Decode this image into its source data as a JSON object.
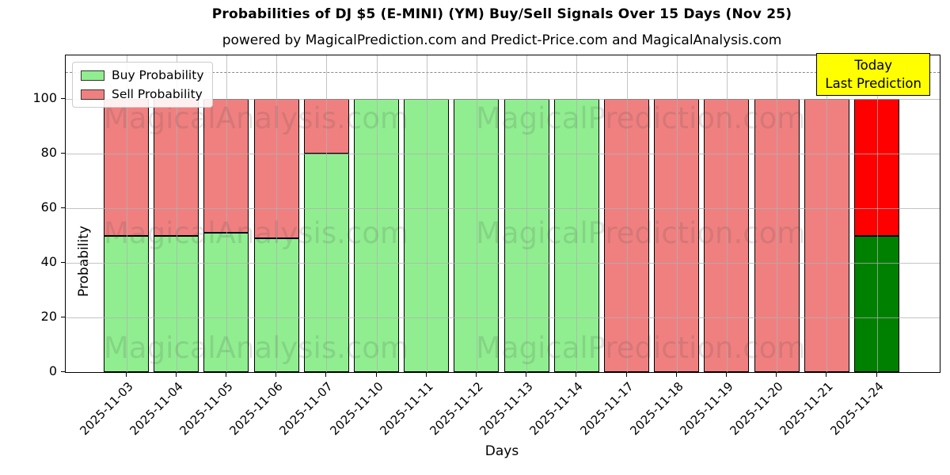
{
  "chart_data": {
    "type": "bar",
    "stacked": true,
    "title": "Probabilities of DJ $5 (E-MINI) (YM) Buy/Sell Signals Over 15 Days (Nov 25)",
    "subtitle": "powered by MagicalPrediction.com and Predict-Price.com and MagicalAnalysis.com",
    "xlabel": "Days",
    "ylabel": "Probability",
    "categories": [
      "2025-11-03",
      "2025-11-04",
      "2025-11-05",
      "2025-11-06",
      "2025-11-07",
      "2025-11-10",
      "2025-11-11",
      "2025-11-12",
      "2025-11-13",
      "2025-11-14",
      "2025-11-17",
      "2025-11-18",
      "2025-11-19",
      "2025-11-20",
      "2025-11-21",
      "2025-11-24"
    ],
    "series": [
      {
        "name": "Buy Probability",
        "color": "#90EE90",
        "values": [
          50,
          50,
          51,
          49,
          80,
          100,
          100,
          100,
          100,
          100,
          0,
          0,
          0,
          0,
          0,
          50
        ]
      },
      {
        "name": "Sell Probability",
        "color": "#F08080",
        "values": [
          50,
          50,
          49,
          51,
          20,
          0,
          0,
          0,
          0,
          0,
          100,
          100,
          100,
          100,
          100,
          50
        ]
      }
    ],
    "today_bar": {
      "index": 15,
      "buy_color": "#008000",
      "sell_color": "#FF0000"
    },
    "yticks": [
      0,
      20,
      40,
      60,
      80,
      100
    ],
    "ylim": [
      0,
      116
    ],
    "dashed_line_y": 110,
    "grid": "on",
    "legend_position": "upper-left",
    "annotation": {
      "lines": [
        "Today",
        "Last Prediction"
      ],
      "bg_color": "#FFFF00"
    },
    "watermarks": {
      "left": "MagicalAnalysis.com",
      "right": "MagicalPrediction.com"
    },
    "colors": {
      "grid": "#b0b0b0",
      "bar_edge": "#000000",
      "dashed_line": "#8a8a8a",
      "annotation_bg": "#FFFF00"
    }
  }
}
